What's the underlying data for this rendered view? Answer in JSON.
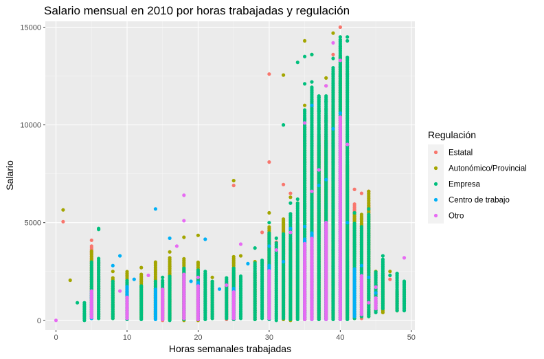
{
  "chart_data": {
    "type": "scatter",
    "title": "Salario mensual en 2010 por horas trabajadas y regulación",
    "xlabel": "Horas semanales trabajadas",
    "ylabel": "Salario",
    "xlim": [
      -1.5,
      50.5
    ],
    "ylim": [
      -500,
      15300
    ],
    "x_ticks": [
      0,
      10,
      20,
      30,
      40,
      50
    ],
    "y_ticks": [
      0,
      5000,
      10000,
      15000
    ],
    "x_tick_labels": [
      "0",
      "10",
      "20",
      "30",
      "40",
      "50"
    ],
    "y_tick_labels": [
      "0",
      "5000",
      "10000",
      "15000"
    ],
    "grid": true,
    "legend": {
      "title": "Regulación",
      "position": "right"
    },
    "series": [
      {
        "name": "Estatal",
        "color": "#F8766D",
        "points": [
          [
            1,
            5050
          ],
          [
            30,
            12600
          ],
          [
            30,
            8100
          ],
          [
            25,
            6900
          ],
          [
            32,
            6950
          ],
          [
            35,
            8700
          ],
          [
            36,
            9200
          ],
          [
            37,
            11400
          ],
          [
            39,
            13600
          ],
          [
            40,
            13500
          ],
          [
            40,
            15000
          ],
          [
            41,
            12600
          ],
          [
            42,
            6700
          ],
          [
            43,
            6500
          ],
          [
            44,
            6600
          ],
          [
            35,
            7000
          ],
          [
            38,
            10800
          ],
          [
            40,
            11000
          ],
          [
            36,
            7600
          ],
          [
            33,
            6500
          ],
          [
            29,
            4500
          ],
          [
            31,
            4000
          ],
          [
            43,
            3000
          ],
          [
            44,
            2500
          ],
          [
            45,
            1800
          ],
          [
            48,
            1400
          ],
          [
            49,
            1000
          ],
          [
            46,
            2300
          ],
          [
            47,
            2100
          ],
          [
            48,
            600
          ],
          [
            5,
            4100
          ],
          [
            10,
            1900
          ],
          [
            15,
            1600
          ],
          [
            20,
            1800
          ],
          [
            25,
            1200
          ],
          [
            28,
            1500
          ],
          [
            35,
            9800
          ],
          [
            38,
            12000
          ],
          [
            39,
            9500
          ],
          [
            41,
            8500
          ],
          [
            34,
            5200
          ],
          [
            37,
            4800
          ],
          [
            42,
            3900
          ],
          [
            40,
            6000
          ],
          [
            39,
            7200
          ]
        ],
        "columns": [
          [
            5,
            200,
            3800
          ],
          [
            6,
            100,
            3000
          ],
          [
            10,
            100,
            1800
          ],
          [
            15,
            0,
            1700
          ],
          [
            20,
            0,
            2300
          ],
          [
            24,
            50,
            2000
          ],
          [
            25,
            50,
            2500
          ],
          [
            30,
            150,
            4500
          ],
          [
            32,
            100,
            5000
          ],
          [
            35,
            50,
            8500
          ],
          [
            36,
            100,
            8000
          ],
          [
            37,
            100,
            9500
          ],
          [
            38,
            50,
            10500
          ],
          [
            39,
            50,
            12000
          ],
          [
            40,
            50,
            13000
          ],
          [
            41,
            50,
            9000
          ],
          [
            42,
            100,
            6000
          ],
          [
            43,
            100,
            5000
          ],
          [
            44,
            300,
            6000
          ],
          [
            45,
            500,
            2500
          ],
          [
            48,
            600,
            1400
          ],
          [
            49,
            600,
            1600
          ]
        ]
      },
      {
        "name": "Autonómico/Provincial",
        "color": "#A3A500",
        "points": [
          [
            1,
            5650
          ],
          [
            2,
            2050
          ],
          [
            20,
            4350
          ],
          [
            25,
            7150
          ],
          [
            32,
            12550
          ],
          [
            35,
            14300
          ],
          [
            39,
            14700
          ],
          [
            36,
            13600
          ],
          [
            38,
            12400
          ],
          [
            40,
            14000
          ],
          [
            33,
            6300
          ],
          [
            34,
            6000
          ],
          [
            37,
            9800
          ],
          [
            41,
            8600
          ],
          [
            44,
            6600
          ],
          [
            18,
            4250
          ],
          [
            12,
            2700
          ],
          [
            8,
            2500
          ],
          [
            16,
            3500
          ],
          [
            22,
            2200
          ],
          [
            26,
            3300
          ],
          [
            45,
            2500
          ],
          [
            47,
            2500
          ],
          [
            35,
            11000
          ],
          [
            39,
            10500
          ],
          [
            40,
            12200
          ],
          [
            42,
            5500
          ],
          [
            43,
            5200
          ],
          [
            30,
            5500
          ],
          [
            28,
            3000
          ]
        ],
        "columns": [
          [
            5,
            300,
            3600
          ],
          [
            8,
            100,
            2200
          ],
          [
            10,
            150,
            2500
          ],
          [
            12,
            100,
            2400
          ],
          [
            14,
            100,
            3000
          ],
          [
            16,
            50,
            3200
          ],
          [
            18,
            0,
            3200
          ],
          [
            20,
            0,
            3000
          ],
          [
            22,
            100,
            2000
          ],
          [
            25,
            100,
            3300
          ],
          [
            28,
            50,
            2500
          ],
          [
            30,
            100,
            4800
          ],
          [
            32,
            50,
            5200
          ],
          [
            33,
            0,
            4000
          ],
          [
            34,
            100,
            5000
          ],
          [
            35,
            50,
            10000
          ],
          [
            36,
            100,
            7500
          ],
          [
            37,
            50,
            9000
          ],
          [
            38,
            100,
            9200
          ],
          [
            39,
            100,
            11000
          ],
          [
            40,
            50,
            13500
          ],
          [
            41,
            100,
            8000
          ],
          [
            42,
            100,
            5500
          ],
          [
            43,
            200,
            5500
          ],
          [
            44,
            200,
            6500
          ],
          [
            46,
            400,
            2200
          ],
          [
            48,
            500,
            1500
          ]
        ]
      },
      {
        "name": "Empresa",
        "color": "#00BF7D",
        "points": [
          [
            6,
            4700
          ],
          [
            6,
            4650
          ],
          [
            32,
            10000
          ],
          [
            34,
            13200
          ],
          [
            35,
            12100
          ],
          [
            35,
            13500
          ],
          [
            36,
            13600
          ],
          [
            37,
            11400
          ],
          [
            38,
            11200
          ],
          [
            39,
            13400
          ],
          [
            40,
            14500
          ],
          [
            41,
            14500
          ],
          [
            41,
            14300
          ],
          [
            35,
            9200
          ],
          [
            35,
            10300
          ],
          [
            38,
            10200
          ],
          [
            37,
            10700
          ],
          [
            40,
            12500
          ],
          [
            28,
            3700
          ],
          [
            31,
            4200
          ],
          [
            30,
            5000
          ],
          [
            42,
            5500
          ],
          [
            44,
            5700
          ],
          [
            46,
            3300
          ],
          [
            49,
            2000
          ],
          [
            49,
            1100
          ],
          [
            48,
            2400
          ],
          [
            47,
            2300
          ],
          [
            36,
            12200
          ],
          [
            39,
            12600
          ],
          [
            34,
            6200
          ],
          [
            33,
            6000
          ],
          [
            15,
            2200
          ],
          [
            21,
            2500
          ],
          [
            12,
            1700
          ],
          [
            3,
            900
          ]
        ],
        "columns": [
          [
            4,
            0,
            900
          ],
          [
            5,
            100,
            3000
          ],
          [
            6,
            100,
            3200
          ],
          [
            8,
            100,
            2000
          ],
          [
            10,
            50,
            2100
          ],
          [
            12,
            50,
            1800
          ],
          [
            14,
            100,
            2000
          ],
          [
            15,
            50,
            2100
          ],
          [
            16,
            0,
            2300
          ],
          [
            18,
            50,
            2700
          ],
          [
            20,
            50,
            2600
          ],
          [
            21,
            50,
            2400
          ],
          [
            22,
            100,
            2000
          ],
          [
            24,
            100,
            2200
          ],
          [
            25,
            50,
            2700
          ],
          [
            26,
            100,
            2300
          ],
          [
            28,
            50,
            3000
          ],
          [
            29,
            100,
            3100
          ],
          [
            30,
            50,
            4500
          ],
          [
            31,
            0,
            4000
          ],
          [
            32,
            100,
            4500
          ],
          [
            33,
            50,
            5500
          ],
          [
            34,
            50,
            6000
          ],
          [
            35,
            50,
            10800
          ],
          [
            36,
            50,
            12000
          ],
          [
            37,
            50,
            11500
          ],
          [
            38,
            50,
            11500
          ],
          [
            39,
            50,
            13000
          ],
          [
            40,
            50,
            14400
          ],
          [
            41,
            50,
            13500
          ],
          [
            42,
            100,
            5000
          ],
          [
            43,
            200,
            4800
          ],
          [
            44,
            200,
            5500
          ],
          [
            45,
            400,
            2500
          ],
          [
            46,
            600,
            3200
          ],
          [
            48,
            500,
            2400
          ],
          [
            49,
            500,
            2000
          ]
        ]
      },
      {
        "name": "Centro de trabajo",
        "color": "#00B0F6",
        "points": [
          [
            14,
            5700
          ],
          [
            16,
            4200
          ],
          [
            21,
            4150
          ],
          [
            9,
            3300
          ],
          [
            8,
            2800
          ],
          [
            11,
            2100
          ],
          [
            36,
            11000
          ],
          [
            39,
            9800
          ],
          [
            40,
            10600
          ],
          [
            35,
            4800
          ],
          [
            37,
            6900
          ],
          [
            38,
            7200
          ],
          [
            32,
            3000
          ],
          [
            30,
            3800
          ],
          [
            33,
            4700
          ],
          [
            41,
            5000
          ],
          [
            43,
            2800
          ],
          [
            45,
            1400
          ],
          [
            44,
            2200
          ],
          [
            19,
            2000
          ],
          [
            27,
            2900
          ],
          [
            23,
            1600
          ]
        ],
        "columns": [
          [
            5,
            100,
            1500
          ],
          [
            10,
            100,
            1800
          ],
          [
            14,
            50,
            1600
          ],
          [
            20,
            50,
            2000
          ],
          [
            25,
            100,
            1700
          ],
          [
            30,
            100,
            2800
          ],
          [
            35,
            100,
            4200
          ],
          [
            36,
            50,
            4500
          ],
          [
            38,
            50,
            5000
          ],
          [
            40,
            50,
            10000
          ],
          [
            42,
            200,
            2700
          ]
        ]
      },
      {
        "name": "Otro",
        "color": "#E76BF3",
        "points": [
          [
            18,
            6400
          ],
          [
            18,
            5100
          ],
          [
            17,
            3800
          ],
          [
            13,
            2300
          ],
          [
            9,
            1500
          ],
          [
            0,
            0
          ],
          [
            26,
            3900
          ],
          [
            31,
            3600
          ],
          [
            33,
            4500
          ],
          [
            35,
            10100
          ],
          [
            36,
            6600
          ],
          [
            37,
            7700
          ],
          [
            39,
            14200
          ],
          [
            40,
            10000
          ],
          [
            41,
            9000
          ],
          [
            38,
            12000
          ],
          [
            40,
            13300
          ],
          [
            49,
            3200
          ],
          [
            45,
            1700
          ],
          [
            44,
            900
          ],
          [
            20,
            2200
          ],
          [
            24,
            1800
          ]
        ],
        "columns": [
          [
            5,
            150,
            1500
          ],
          [
            10,
            100,
            1200
          ],
          [
            15,
            50,
            1600
          ],
          [
            18,
            100,
            2400
          ],
          [
            20,
            50,
            1800
          ],
          [
            25,
            100,
            1500
          ],
          [
            30,
            100,
            2600
          ],
          [
            35,
            50,
            4000
          ],
          [
            36,
            50,
            4200
          ],
          [
            38,
            50,
            5000
          ],
          [
            40,
            50,
            10400
          ],
          [
            43,
            300,
            2300
          ],
          [
            45,
            600,
            1200
          ]
        ]
      }
    ]
  }
}
